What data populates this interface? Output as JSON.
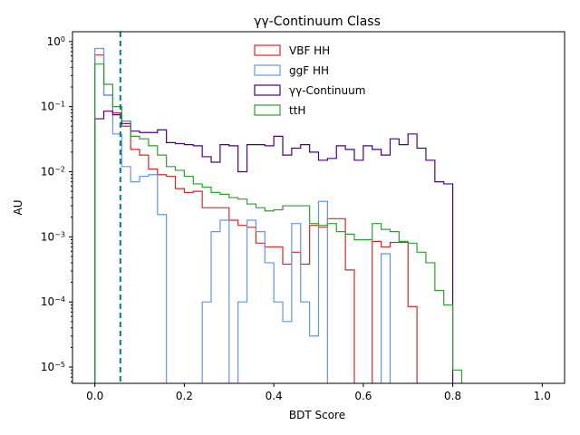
{
  "chart_data": {
    "type": "histogram",
    "title": "γγ-Continuum Class",
    "xlabel": "BDT Score",
    "ylabel": "AU",
    "xlim": [
      -0.05,
      1.05
    ],
    "ylim_log10": [
      -5.25,
      0.15
    ],
    "yscale": "log",
    "grid": false,
    "legend_placement": "top-center",
    "x_ticks": [
      {
        "value": 0.0,
        "label": "0.0"
      },
      {
        "value": 0.2,
        "label": "0.2"
      },
      {
        "value": 0.4,
        "label": "0.4"
      },
      {
        "value": 0.6,
        "label": "0.6"
      },
      {
        "value": 0.8,
        "label": "0.8"
      },
      {
        "value": 1.0,
        "label": "1.0"
      }
    ],
    "y_ticks": [
      {
        "exp": 0,
        "base": "10",
        "sup": "0"
      },
      {
        "exp": -1,
        "base": "10",
        "sup": "−1"
      },
      {
        "exp": -2,
        "base": "10",
        "sup": "−2"
      },
      {
        "exp": -3,
        "base": "10",
        "sup": "−3"
      },
      {
        "exp": -4,
        "base": "10",
        "sup": "−4"
      },
      {
        "exp": -5,
        "base": "10",
        "sup": "−5"
      }
    ],
    "cut_line": {
      "x": 0.057,
      "color": "#008080",
      "style": "dashed"
    },
    "bins": {
      "start": 0.0,
      "width": 0.02,
      "count": 50
    },
    "series": [
      {
        "name": "VBF HH",
        "color": "#d62728",
        "values": [
          0.62,
          0.15,
          0.08,
          0.05,
          0.022,
          0.018,
          0.011,
          0.009,
          0.0085,
          0.0055,
          0.0048,
          0.005,
          0.0028,
          0.0028,
          0.0028,
          0.0018,
          0.0015,
          0.0014,
          0.0008,
          0.0007,
          0.0007,
          0.00038,
          0.00058,
          0.00038,
          0.0015,
          0.0014,
          0.0019,
          0.0019,
          0.00031,
          0.0,
          0.0,
          0.00085,
          0.0007,
          0.00082,
          0.00082,
          8.5e-05,
          0.0,
          0.0,
          0.0,
          0.0,
          0.0,
          0.0,
          0.0,
          0.0,
          0.0,
          0.0,
          0.0,
          0.0,
          0.0,
          0.0
        ]
      },
      {
        "name": "ggF HH",
        "color": "#6495ed",
        "values": [
          0.78,
          0.15,
          0.038,
          0.012,
          0.007,
          0.0085,
          0.009,
          0.0022,
          0.0,
          0.0,
          0.0,
          0.0,
          0.0001,
          0.0012,
          0.0018,
          0.0,
          0.0001,
          0.0018,
          0.0012,
          0.0004,
          0.0001,
          5e-05,
          0.0016,
          0.0001,
          3e-05,
          0.0035,
          0.0,
          0.0,
          0.0,
          0.0,
          0.0,
          0.0,
          0.00055,
          0.0,
          0.0,
          0.0,
          0.0,
          0.0,
          0.0,
          0.0,
          0.0,
          0.0,
          0.0,
          0.0,
          0.0,
          0.0,
          0.0,
          0.0,
          0.0,
          0.0
        ]
      },
      {
        "name": "γγ-Continuum",
        "color": "#4b0082",
        "values": [
          0.065,
          0.085,
          0.075,
          0.055,
          0.042,
          0.04,
          0.04,
          0.044,
          0.028,
          0.027,
          0.026,
          0.025,
          0.017,
          0.014,
          0.026,
          0.025,
          0.01,
          0.026,
          0.026,
          0.025,
          0.035,
          0.018,
          0.023,
          0.026,
          0.02,
          0.015,
          0.016,
          0.025,
          0.022,
          0.015,
          0.025,
          0.022,
          0.018,
          0.032,
          0.026,
          0.038,
          0.023,
          0.015,
          0.007,
          0.0065,
          0.0,
          0.0,
          0.0,
          0.0,
          0.0,
          0.0,
          0.0,
          0.0,
          0.0,
          0.0
        ]
      },
      {
        "name": "ttH",
        "color": "#2ca02c",
        "values": [
          0.45,
          0.22,
          0.1,
          0.06,
          0.035,
          0.032,
          0.025,
          0.018,
          0.012,
          0.0105,
          0.0085,
          0.0065,
          0.0058,
          0.0048,
          0.0045,
          0.004,
          0.0038,
          0.0032,
          0.0028,
          0.0025,
          0.0026,
          0.003,
          0.003,
          0.003,
          0.0016,
          0.0015,
          0.0016,
          0.0012,
          0.0011,
          0.0009,
          0.0009,
          0.0016,
          0.0013,
          0.0012,
          0.00085,
          0.0008,
          0.00058,
          0.0004,
          0.00015,
          9e-05,
          9e-06,
          0.0,
          0.0,
          0.0,
          0.0,
          0.0,
          0.0,
          0.0,
          0.0,
          0.0
        ]
      }
    ]
  }
}
